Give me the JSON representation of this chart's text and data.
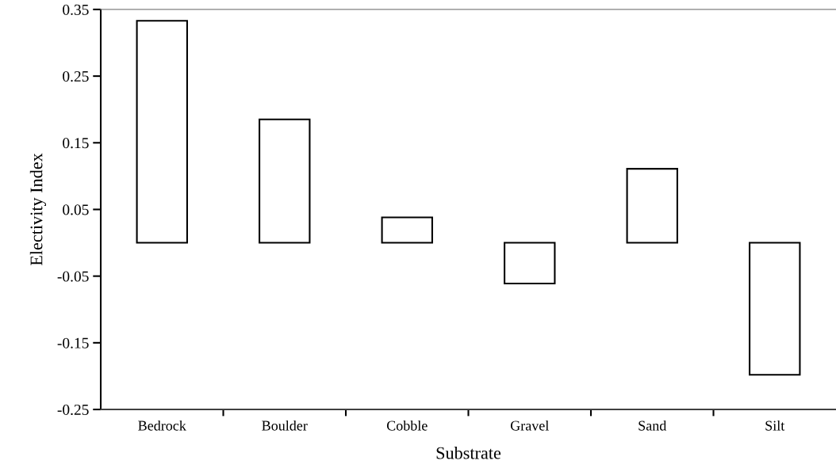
{
  "chart_data": {
    "type": "bar",
    "xlabel": "Substrate",
    "ylabel": "Electivity Index",
    "categories": [
      "Bedrock",
      "Boulder",
      "Cobble",
      "Gravel",
      "Sand",
      "Silt"
    ],
    "values": [
      0.333,
      0.185,
      0.038,
      -0.061,
      0.111,
      -0.198
    ],
    "color": "#ffffff",
    "ylim": [
      -0.25,
      0.35
    ],
    "yticks": [
      -0.25,
      -0.15,
      -0.05,
      0.05,
      0.15,
      0.25,
      0.35
    ],
    "grid": false
  }
}
